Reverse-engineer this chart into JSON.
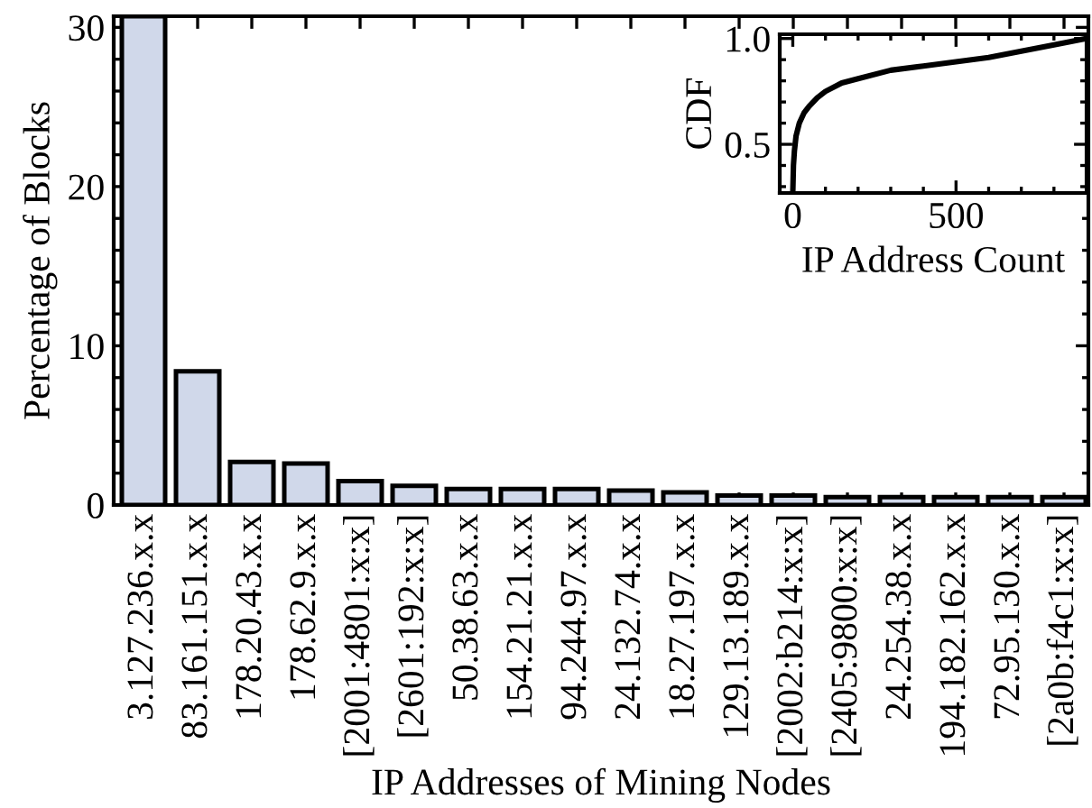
{
  "chart_data": [
    {
      "type": "bar",
      "xlabel": "IP Addresses of Mining Nodes",
      "ylabel": "Percentage of Blocks",
      "categories": [
        "3.127.236.x.x",
        "83.161.151.x.x",
        "178.20.43.x.x",
        "178.62.9.x.x",
        "[2001:4801:x:x]",
        "[2601:192:x:x]",
        "50.38.63.x.x",
        "154.21.21.x.x",
        "94.244.97.x.x",
        "24.132.74.x.x",
        "18.27.197.x.x",
        "129.13.189.x.x",
        "[2002:b214:x:x]",
        "[2405:9800:x:x]",
        "24.254.38.x.x",
        "194.182.162.x.x",
        "72.95.130.x.x",
        "[2a0b:f4c1:x:x]"
      ],
      "values": [
        30.7,
        8.4,
        2.7,
        2.6,
        1.5,
        1.2,
        1.0,
        1.0,
        1.0,
        0.9,
        0.8,
        0.6,
        0.6,
        0.5,
        0.5,
        0.5,
        0.5,
        0.5
      ],
      "color": "#d0d8ea",
      "ylim": [
        0,
        30.7
      ],
      "yticks": [
        0,
        10,
        20,
        30
      ],
      "grid": false,
      "legend": false
    },
    {
      "type": "line",
      "xlabel": "IP Address Count",
      "ylabel": "CDF",
      "x": [
        0,
        2,
        5,
        10,
        20,
        35,
        50,
        75,
        100,
        150,
        200,
        300,
        400,
        500,
        600,
        700,
        800,
        900
      ],
      "values": [
        0.27,
        0.4,
        0.47,
        0.54,
        0.6,
        0.65,
        0.68,
        0.72,
        0.75,
        0.79,
        0.81,
        0.85,
        0.87,
        0.89,
        0.91,
        0.94,
        0.97,
        1.0
      ],
      "color": "#000000",
      "xlim": [
        -40,
        900
      ],
      "ylim": [
        0.27,
        1.02
      ],
      "xticks": [
        0,
        500
      ],
      "yticks": [
        0.5,
        {
          "value": 1,
          "label": "1.0"
        }
      ],
      "grid": false,
      "legend": false,
      "marker": "none",
      "line_style": "solid"
    }
  ]
}
